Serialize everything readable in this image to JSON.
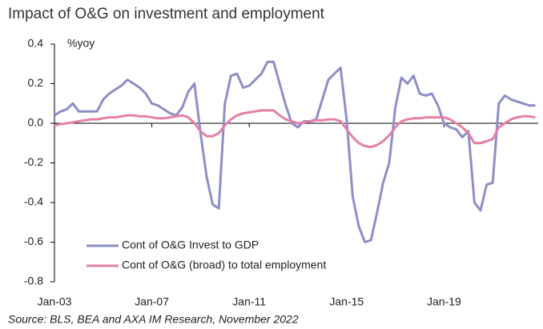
{
  "chart_data": {
    "type": "line",
    "title": "Impact of O&G on investment and employment",
    "ylabel": "%yoy",
    "source": "Source: BLS, BEA and AXA IM Research, November 2022",
    "categories": [
      "Jan-03",
      null,
      null,
      null,
      null,
      null,
      null,
      null,
      null,
      null,
      null,
      null,
      null,
      null,
      null,
      null,
      "Jan-07",
      null,
      null,
      null,
      null,
      null,
      null,
      null,
      null,
      null,
      null,
      null,
      null,
      null,
      null,
      null,
      "Jan-11",
      null,
      null,
      null,
      null,
      null,
      null,
      null,
      null,
      null,
      null,
      null,
      null,
      null,
      null,
      null,
      "Jan-15",
      null,
      null,
      null,
      null,
      null,
      null,
      null,
      null,
      null,
      null,
      null,
      null,
      null,
      null,
      null,
      "Jan-19",
      null,
      null,
      null,
      null,
      null,
      null,
      null,
      null,
      null,
      null,
      null,
      null,
      null,
      null,
      null
    ],
    "series": [
      {
        "name": "Cont of O&G Invest to GDP",
        "color": "#8e8fc6",
        "values": [
          0.04,
          0.06,
          0.07,
          0.1,
          0.06,
          0.06,
          0.06,
          0.06,
          0.12,
          0.15,
          0.17,
          0.19,
          0.22,
          0.2,
          0.18,
          0.15,
          0.1,
          0.09,
          0.07,
          0.05,
          0.04,
          0.08,
          0.16,
          0.2,
          -0.05,
          -0.27,
          -0.41,
          -0.43,
          0.1,
          0.24,
          0.25,
          0.18,
          0.19,
          0.22,
          0.25,
          0.31,
          0.31,
          0.2,
          0.09,
          0.0,
          -0.02,
          0.01,
          0.01,
          0.02,
          0.12,
          0.22,
          0.25,
          0.28,
          0.02,
          -0.37,
          -0.52,
          -0.6,
          -0.59,
          -0.45,
          -0.3,
          -0.2,
          0.08,
          0.23,
          0.2,
          0.24,
          0.15,
          0.14,
          0.15,
          0.09,
          0.0,
          -0.02,
          -0.03,
          -0.07,
          -0.04,
          -0.4,
          -0.44,
          -0.31,
          -0.3,
          0.1,
          0.14,
          0.12,
          0.11,
          0.1,
          0.09,
          0.09
        ]
      },
      {
        "name": "Cont of O&G (broad) to total employment",
        "color": "#e580a6",
        "values": [
          -0.01,
          -0.005,
          0,
          0.005,
          0.01,
          0.015,
          0.02,
          0.02,
          0.025,
          0.03,
          0.03,
          0.035,
          0.04,
          0.04,
          0.035,
          0.035,
          0.03,
          0.025,
          0.025,
          0.03,
          0.035,
          0.04,
          0.03,
          0.0,
          -0.04,
          -0.065,
          -0.065,
          -0.05,
          -0.01,
          0.02,
          0.04,
          0.05,
          0.055,
          0.06,
          0.065,
          0.065,
          0.065,
          0.04,
          0.02,
          0.01,
          0.0,
          0.005,
          0.01,
          0.015,
          0.015,
          0.02,
          0.02,
          0.01,
          -0.03,
          -0.07,
          -0.1,
          -0.115,
          -0.12,
          -0.11,
          -0.09,
          -0.06,
          -0.02,
          0.01,
          0.02,
          0.025,
          0.025,
          0.03,
          0.03,
          0.03,
          0.03,
          0.02,
          0.0,
          -0.02,
          -0.05,
          -0.1,
          -0.1,
          -0.09,
          -0.08,
          -0.02,
          0.0,
          0.02,
          0.03,
          0.035,
          0.035,
          0.03
        ]
      }
    ],
    "ylim": [
      -0.8,
      0.4
    ],
    "yticks": [
      0.4,
      0.2,
      {
        "value": 0,
        "label": "0.0"
      },
      -0.2,
      -0.4,
      -0.6,
      -0.8
    ],
    "legend": "lower left"
  }
}
